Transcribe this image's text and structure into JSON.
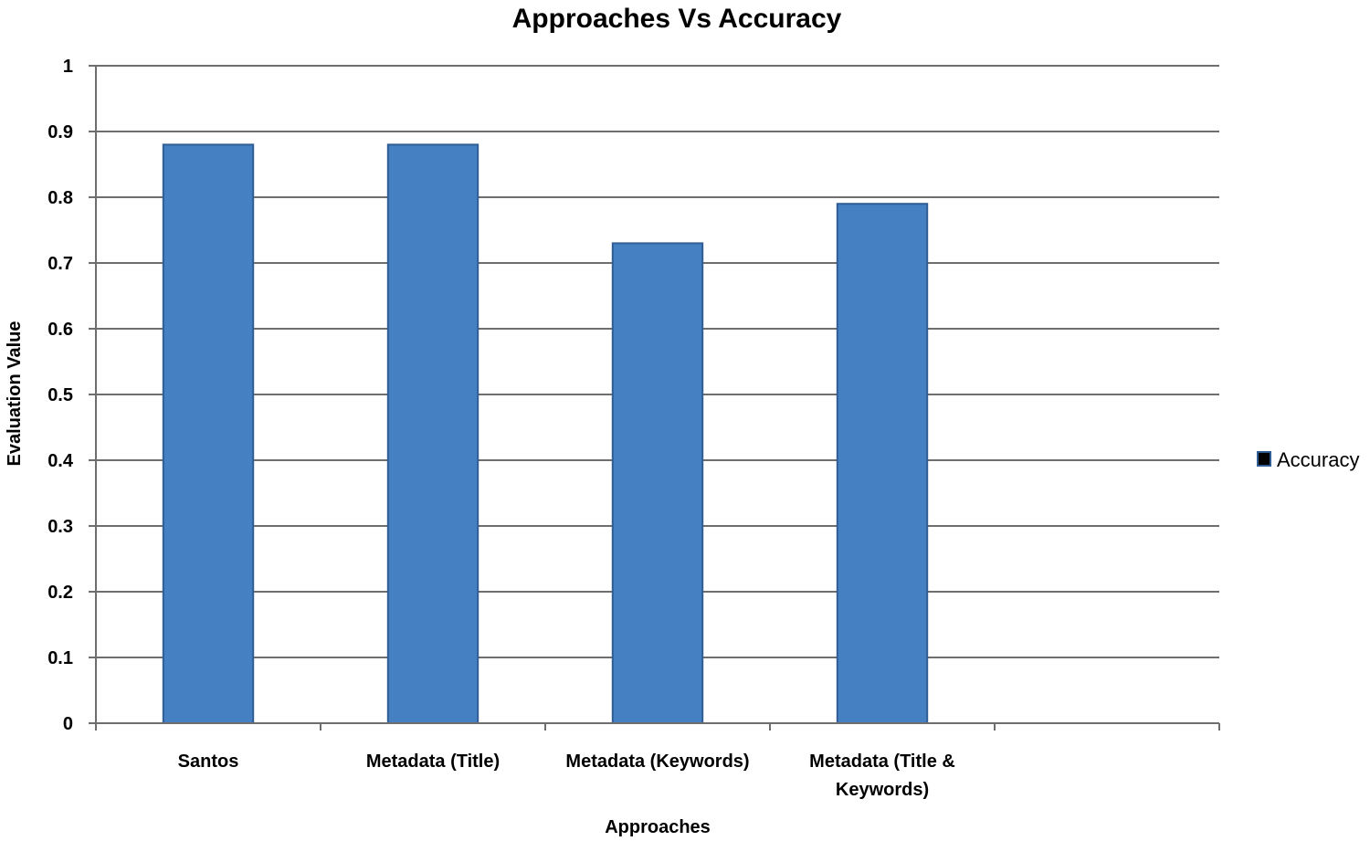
{
  "chart_data": {
    "type": "bar",
    "title": "Approaches Vs Accuracy",
    "xlabel": "Approaches",
    "ylabel": "Evaluation Value",
    "categories": [
      [
        "Santos"
      ],
      [
        "Metadata (Title)"
      ],
      [
        "Metadata (Keywords)"
      ],
      [
        "Metadata (Title &",
        "Keywords)"
      ]
    ],
    "series": [
      {
        "name": "Accuracy",
        "values": [
          0.88,
          0.88,
          0.73,
          0.79
        ],
        "color": "#4480c2"
      }
    ],
    "ylim": [
      0,
      1
    ],
    "yticks": [
      "0",
      "0.1",
      "0.2",
      "0.3",
      "0.4",
      "0.5",
      "0.6",
      "0.7",
      "0.8",
      "0.9",
      "1"
    ],
    "category_slots": 5,
    "grid": true,
    "legend_position": "right"
  }
}
